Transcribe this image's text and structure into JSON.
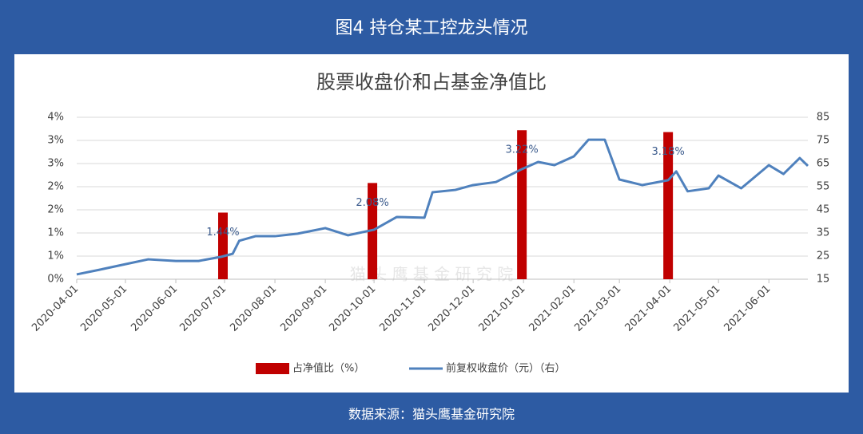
{
  "header": "图4 持仓某工控龙头情况",
  "footer": "数据来源：猫头鹰基金研究院",
  "chart_data": {
    "type": "combo",
    "title": "股票收盘价和占基金净值比",
    "watermark": "猫 头 鹰 基 金 研 究 院",
    "xlim": [
      "2020-04-01",
      "2021-06-25"
    ],
    "xticks": [
      "2020-04-01",
      "2020-05-01",
      "2020-06-01",
      "2020-07-01",
      "2020-08-01",
      "2020-09-01",
      "2020-10-01",
      "2020-11-01",
      "2020-12-01",
      "2021-01-01",
      "2021-02-01",
      "2021-03-01",
      "2021-04-01",
      "2021-05-01",
      "2021-06-01"
    ],
    "ylim": [
      0,
      3.5
    ],
    "yticks": [
      {
        "value": 0,
        "label": "0%"
      },
      {
        "value": 0.5,
        "label": "1%"
      },
      {
        "value": 1,
        "label": "1%"
      },
      {
        "value": 1.5,
        "label": "2%"
      },
      {
        "value": 2,
        "label": "2%"
      },
      {
        "value": 2.5,
        "label": "3%"
      },
      {
        "value": 3,
        "label": "3%"
      },
      {
        "value": 3.5,
        "label": "4%"
      }
    ],
    "y2lim": [
      15,
      85
    ],
    "y2ticks": [
      15,
      25,
      35,
      45,
      55,
      65,
      75,
      85
    ],
    "grid": true,
    "legend": "bottom",
    "series": [
      {
        "name": "占净值比（%）",
        "type": "bar",
        "color": "#c00000",
        "x": [
          "2020-06-30",
          "2020-09-30",
          "2020-12-31",
          "2021-03-31"
        ],
        "values": [
          1.44,
          2.08,
          3.22,
          3.18
        ],
        "value_labels": [
          "1.44%",
          "2.08%",
          "3.22%",
          "3.18%"
        ]
      },
      {
        "name": "前复权收盘价（元）（右）",
        "type": "line",
        "axis": "y2",
        "color": "#4f81bd",
        "x": [
          "2020-04-01",
          "2020-04-15",
          "2020-05-01",
          "2020-05-15",
          "2020-06-01",
          "2020-06-15",
          "2020-06-29",
          "2020-07-06",
          "2020-07-10",
          "2020-07-20",
          "2020-08-01",
          "2020-08-15",
          "2020-09-01",
          "2020-09-15",
          "2020-10-01",
          "2020-10-15",
          "2020-11-01",
          "2020-11-06",
          "2020-11-20",
          "2020-12-01",
          "2020-12-15",
          "2020-12-31",
          "2021-01-10",
          "2021-01-20",
          "2021-02-01",
          "2021-02-10",
          "2021-02-20",
          "2021-03-01",
          "2021-03-15",
          "2021-03-31",
          "2021-04-05",
          "2021-04-12",
          "2021-04-25",
          "2021-05-01",
          "2021-05-15",
          "2021-06-01",
          "2021-06-10",
          "2021-06-20",
          "2021-06-25"
        ],
        "values": [
          17.1,
          19.1,
          21.5,
          23.6,
          22.9,
          22.9,
          24.7,
          26,
          31.6,
          33.6,
          33.6,
          34.7,
          37.1,
          34,
          36.4,
          41.9,
          41.6,
          52.6,
          53.6,
          55.7,
          57,
          62.6,
          65.7,
          64.3,
          68.1,
          75.3,
          75.3,
          58.1,
          55.7,
          57.8,
          61.6,
          53,
          54.3,
          59.8,
          54.3,
          64.3,
          60.5,
          67.4,
          64
        ]
      }
    ]
  }
}
